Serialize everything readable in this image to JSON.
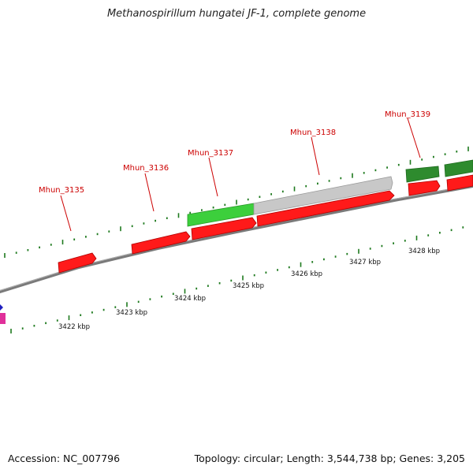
{
  "title": "Methanospirillum hungatei JF-1, complete genome",
  "footer": {
    "accession": "Accession: NC_007796",
    "topology": "Topology: circular; Length: 3,544,738 bp; Genes: 3,205"
  },
  "colors": {
    "gene_label": "#cc0000",
    "tick": "#1e7a1e",
    "backbone": "#808080",
    "cds_forward": "#ff0000",
    "cds_reverse": "#ff1a1a",
    "gene_bright_green": "#3ccf3c",
    "gene_dark_green": "#2e8b2e",
    "gene_gray": "#c4c4c4",
    "scale_text": "#111111"
  },
  "gene_labels": [
    "Mhun_3135",
    "Mhun_3136",
    "Mhun_3137",
    "Mhun_3138",
    "Mhun_3139"
  ],
  "scale_labels": [
    "3422 kbp",
    "3423 kbp",
    "3424 kbp",
    "3425 kbp",
    "3426 kbp",
    "3427 kbp",
    "3428 kbp"
  ]
}
